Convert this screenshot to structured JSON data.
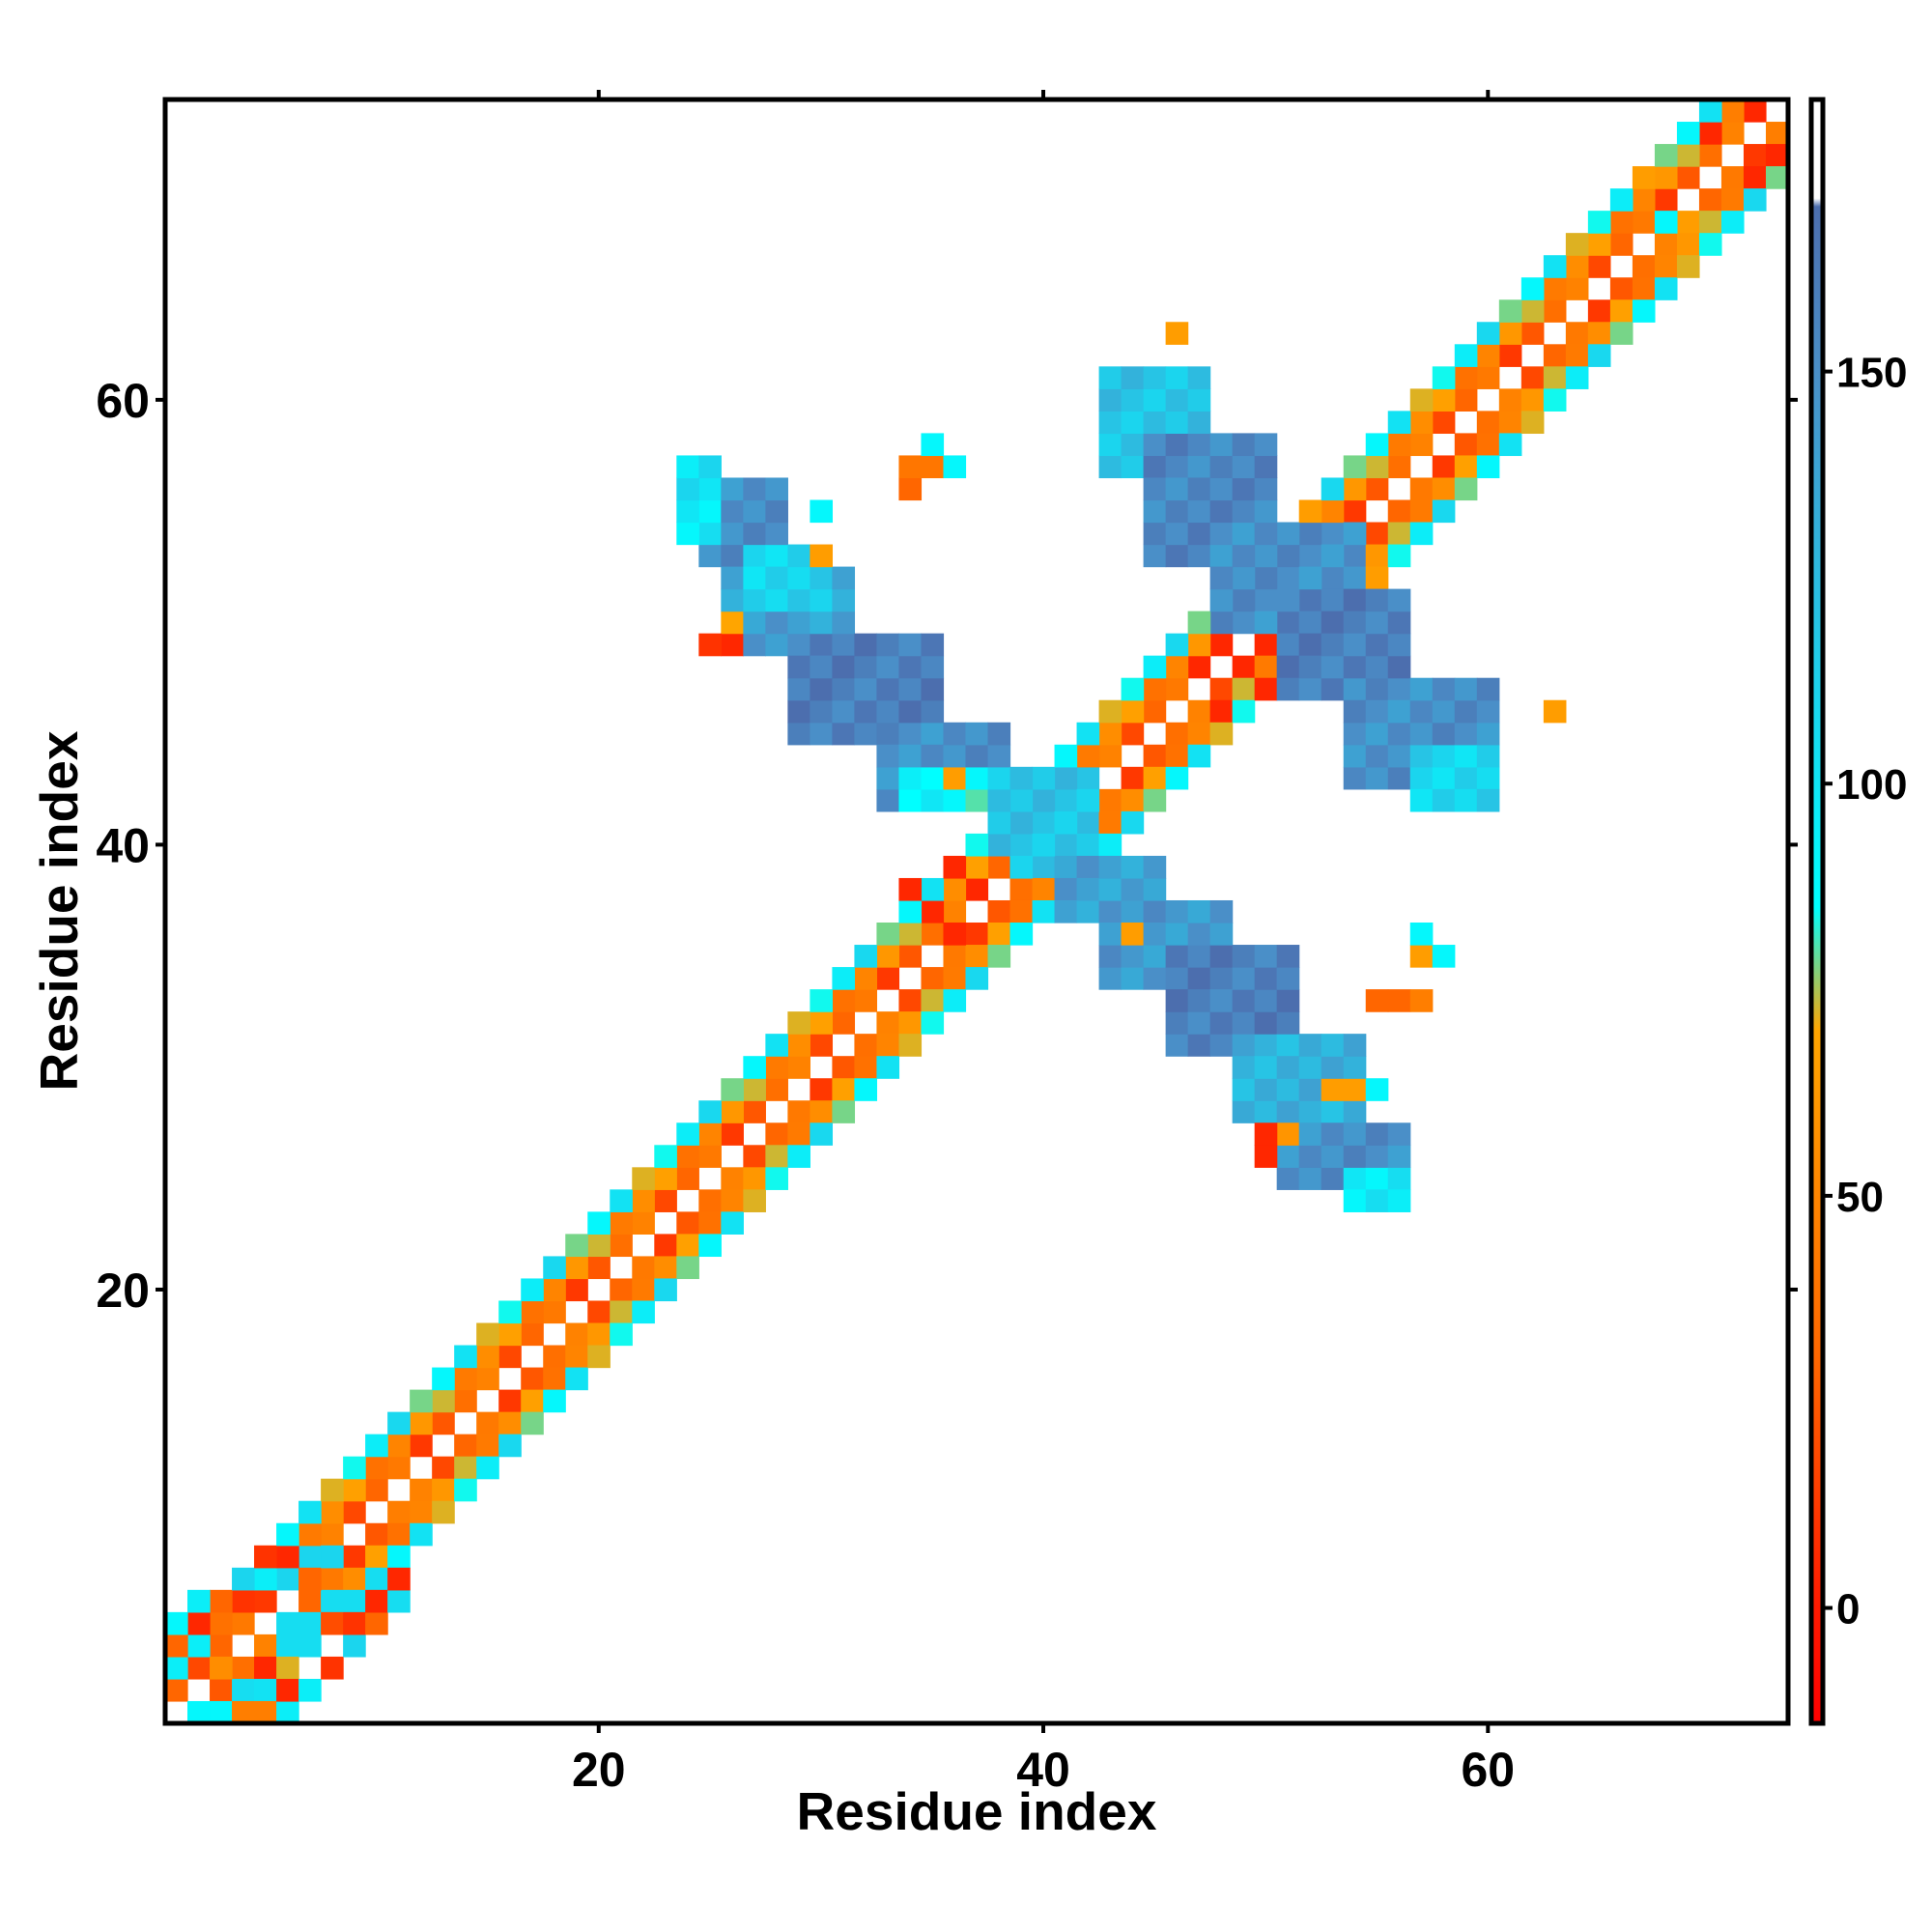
{
  "colors": {
    "white": "#ffffff",
    "red": "#ff0000",
    "red_orange": "#ff3300",
    "orange": "#ff6600",
    "amber": "#ffa500",
    "cyan": "#00ffff",
    "light_blue": "#1bd5ee",
    "mid_blue": "#33b1dd",
    "steel_blue": "#4a8fc8",
    "slate_blue": "#4c6eae"
  },
  "chart_data": {
    "type": "heatmap",
    "xlabel": "Residue index",
    "ylabel": "Residue index",
    "xlim": [
      0.5,
      73.5
    ],
    "ylim": [
      0.5,
      73.5
    ],
    "x_ticks": [
      20,
      40,
      60
    ],
    "y_ticks": [
      20,
      40,
      60
    ],
    "x_tick_labels": [
      "20",
      "40",
      "60"
    ],
    "y_tick_labels": [
      "20",
      "40",
      "60"
    ],
    "grid": false,
    "legend": "colorbar-right",
    "colorbar": {
      "range": [
        -14,
        183
      ],
      "ticks": [
        0,
        50,
        100,
        150
      ],
      "tick_labels": [
        "0",
        "50",
        "100",
        "150"
      ],
      "stops": [
        {
          "value": -14,
          "color": "#ff0000"
        },
        {
          "value": 0,
          "color": "#ff1a00"
        },
        {
          "value": 30,
          "color": "#ff6600"
        },
        {
          "value": 70,
          "color": "#ffa500"
        },
        {
          "value": 85,
          "color": "#00ffff"
        },
        {
          "value": 110,
          "color": "#1bd5ee"
        },
        {
          "value": 150,
          "color": "#4a8fc8"
        },
        {
          "value": 170,
          "color": "#4c6eae"
        },
        {
          "value": 171,
          "color": "#ffffff"
        },
        {
          "value": 183,
          "color": "#ffffff"
        }
      ]
    },
    "diagonal_bands": [
      {
        "offset": 1,
        "from": 1,
        "to": 72,
        "value": 30
      },
      {
        "offset": -1,
        "from": 2,
        "to": 73,
        "value": 30
      },
      {
        "offset": 2,
        "from": 1,
        "to": 71,
        "value": 55
      },
      {
        "offset": -2,
        "from": 3,
        "to": 73,
        "value": 55
      },
      {
        "offset": 3,
        "from": 1,
        "to": 70,
        "value": 90
      },
      {
        "offset": -3,
        "from": 4,
        "to": 73,
        "value": 90
      }
    ],
    "cells": [
      {
        "x": 1,
        "y": 2,
        "v": 30
      },
      {
        "x": 1,
        "y": 3,
        "v": 95
      },
      {
        "x": 1,
        "y": 4,
        "v": 30
      },
      {
        "x": 1,
        "y": 5,
        "v": 90
      },
      {
        "x": 2,
        "y": 1,
        "v": 90
      },
      {
        "x": 2,
        "y": 4,
        "v": 95
      },
      {
        "x": 2,
        "y": 5,
        "v": 5
      },
      {
        "x": 2,
        "y": 6,
        "v": 95
      },
      {
        "x": 3,
        "y": 1,
        "v": 90
      },
      {
        "x": 3,
        "y": 3,
        "v": 55
      },
      {
        "x": 3,
        "y": 4,
        "v": 30
      },
      {
        "x": 3,
        "y": 6,
        "v": 30
      },
      {
        "x": 4,
        "y": 1,
        "v": 45
      },
      {
        "x": 4,
        "y": 2,
        "v": 105
      },
      {
        "x": 4,
        "y": 6,
        "v": 10
      },
      {
        "x": 4,
        "y": 7,
        "v": 110
      },
      {
        "x": 5,
        "y": 1,
        "v": 45
      },
      {
        "x": 5,
        "y": 3,
        "v": 5
      },
      {
        "x": 5,
        "y": 7,
        "v": 95
      },
      {
        "x": 5,
        "y": 8,
        "v": 10
      },
      {
        "x": 6,
        "y": 1,
        "v": 95
      },
      {
        "x": 6,
        "y": 2,
        "v": 5
      },
      {
        "x": 6,
        "y": 4,
        "v": 105
      },
      {
        "x": 6,
        "y": 5,
        "v": 105
      },
      {
        "x": 6,
        "y": 7,
        "v": 110
      },
      {
        "x": 6,
        "y": 8,
        "v": 5
      },
      {
        "x": 6,
        "y": 9,
        "v": 90
      },
      {
        "x": 7,
        "y": 2,
        "v": 95
      },
      {
        "x": 7,
        "y": 4,
        "v": 105
      },
      {
        "x": 7,
        "y": 5,
        "v": 105
      },
      {
        "x": 7,
        "y": 7,
        "v": 30
      },
      {
        "x": 7,
        "y": 8,
        "v": 110
      },
      {
        "x": 8,
        "y": 3,
        "v": 10
      },
      {
        "x": 8,
        "y": 5,
        "v": 20
      },
      {
        "x": 8,
        "y": 6,
        "v": 105
      },
      {
        "x": 8,
        "y": 8,
        "v": 110
      },
      {
        "x": 9,
        "y": 4,
        "v": 110
      },
      {
        "x": 9,
        "y": 5,
        "v": 10
      },
      {
        "x": 9,
        "y": 6,
        "v": 105
      },
      {
        "x": 10,
        "y": 5,
        "v": 30
      },
      {
        "x": 10,
        "y": 6,
        "v": 5
      },
      {
        "x": 10,
        "y": 7,
        "v": 105
      },
      {
        "x": 11,
        "y": 6,
        "v": 105
      },
      {
        "x": 11,
        "y": 7,
        "v": 5
      },
      {
        "x": 11,
        "y": 10,
        "v": 45
      }
    ],
    "blocks": [
      {
        "x": [
          25,
          28
        ],
        "y": [
          53,
          56
        ],
        "v": 150
      },
      {
        "x": [
          26,
          31
        ],
        "y": [
          49,
          52
        ],
        "v": 140
      },
      {
        "x": [
          29,
          35
        ],
        "y": [
          45,
          49
        ],
        "v": 160
      },
      {
        "x": [
          33,
          38
        ],
        "y": [
          42,
          45
        ],
        "v": 150
      },
      {
        "x": [
          24,
          25
        ],
        "y": [
          54,
          57
        ],
        "v": 100
      },
      {
        "x": [
          27,
          30
        ],
        "y": [
          51,
          53
        ],
        "v": 110
      },
      {
        "x": [
          34,
          37
        ],
        "y": [
          42,
          43
        ],
        "v": 90
      },
      {
        "x": [
          38,
          42
        ],
        "y": [
          39,
          43
        ],
        "v": 120
      },
      {
        "x": [
          41,
          45
        ],
        "y": [
          37,
          39
        ],
        "v": 140
      },
      {
        "x": [
          43,
          48
        ],
        "y": [
          34,
          37
        ],
        "v": 145
      },
      {
        "x": [
          46,
          51
        ],
        "y": [
          31,
          35
        ],
        "v": 160
      },
      {
        "x": [
          49,
          54
        ],
        "y": [
          28,
          31
        ],
        "v": 130
      },
      {
        "x": [
          51,
          56
        ],
        "y": [
          25,
          27
        ],
        "v": 150
      },
      {
        "x": [
          54,
          56
        ],
        "y": [
          24,
          25
        ],
        "v": 100
      },
      {
        "x": [
          43,
          47
        ],
        "y": [
          57,
          61
        ],
        "v": 120
      },
      {
        "x": [
          45,
          50
        ],
        "y": [
          53,
          58
        ],
        "v": 155
      },
      {
        "x": [
          48,
          54
        ],
        "y": [
          50,
          54
        ],
        "v": 150
      },
      {
        "x": [
          51,
          56
        ],
        "y": [
          47,
          51
        ],
        "v": 160
      },
      {
        "x": [
          54,
          60
        ],
        "y": [
          43,
          47
        ],
        "v": 150
      },
      {
        "x": [
          57,
          60
        ],
        "y": [
          42,
          44
        ],
        "v": 110
      }
    ],
    "singles": [
      {
        "x": 46,
        "y": 63,
        "v": 65
      },
      {
        "x": 63,
        "y": 46,
        "v": 65
      },
      {
        "x": 30,
        "y": 53,
        "v": 65
      },
      {
        "x": 30,
        "y": 55,
        "v": 90
      },
      {
        "x": 26,
        "y": 50,
        "v": 70
      },
      {
        "x": 25,
        "y": 49,
        "v": 10
      },
      {
        "x": 26,
        "y": 49,
        "v": 5
      },
      {
        "x": 34,
        "y": 56,
        "v": 30
      },
      {
        "x": 34,
        "y": 57,
        "v": 40
      },
      {
        "x": 35,
        "y": 57,
        "v": 40
      },
      {
        "x": 36,
        "y": 57,
        "v": 90
      },
      {
        "x": 35,
        "y": 58,
        "v": 90
      },
      {
        "x": 57,
        "y": 35,
        "v": 65
      },
      {
        "x": 57,
        "y": 36,
        "v": 90
      },
      {
        "x": 58,
        "y": 35,
        "v": 90
      },
      {
        "x": 55,
        "y": 33,
        "v": 30
      },
      {
        "x": 56,
        "y": 33,
        "v": 30
      },
      {
        "x": 57,
        "y": 33,
        "v": 45
      },
      {
        "x": 53,
        "y": 29,
        "v": 65
      },
      {
        "x": 54,
        "y": 29,
        "v": 65
      },
      {
        "x": 55,
        "y": 29,
        "v": 90
      },
      {
        "x": 50,
        "y": 26,
        "v": 5
      },
      {
        "x": 50,
        "y": 27,
        "v": 5
      },
      {
        "x": 51,
        "y": 27,
        "v": 60
      },
      {
        "x": 36,
        "y": 43,
        "v": 65
      },
      {
        "x": 44,
        "y": 36,
        "v": 65
      },
      {
        "x": 34,
        "y": 38,
        "v": 5
      },
      {
        "x": 35,
        "y": 37,
        "v": 5
      },
      {
        "x": 36,
        "y": 36,
        "v": 5
      },
      {
        "x": 36,
        "y": 39,
        "v": 5
      },
      {
        "x": 37,
        "y": 38,
        "v": 5
      },
      {
        "x": 38,
        "y": 39,
        "v": 30
      },
      {
        "x": 47,
        "y": 48,
        "v": 5
      },
      {
        "x": 48,
        "y": 49,
        "v": 5
      },
      {
        "x": 49,
        "y": 48,
        "v": 5
      },
      {
        "x": 50,
        "y": 49,
        "v": 5
      },
      {
        "x": 50,
        "y": 47,
        "v": 5
      },
      {
        "x": 48,
        "y": 46,
        "v": 5
      },
      {
        "x": 70,
        "y": 72,
        "v": 5
      },
      {
        "x": 72,
        "y": 73,
        "v": 5
      },
      {
        "x": 73,
        "y": 71,
        "v": 5
      },
      {
        "x": 72,
        "y": 70,
        "v": 5
      },
      {
        "x": 71,
        "y": 73,
        "v": 45
      },
      {
        "x": 73,
        "y": 72,
        "v": 45
      },
      {
        "x": 55,
        "y": 52,
        "v": 65
      },
      {
        "x": 52,
        "y": 55,
        "v": 65
      },
      {
        "x": 67,
        "y": 70,
        "v": 65
      },
      {
        "x": 69,
        "y": 68,
        "v": 65
      },
      {
        "x": 68,
        "y": 68,
        "v": 90
      }
    ]
  }
}
